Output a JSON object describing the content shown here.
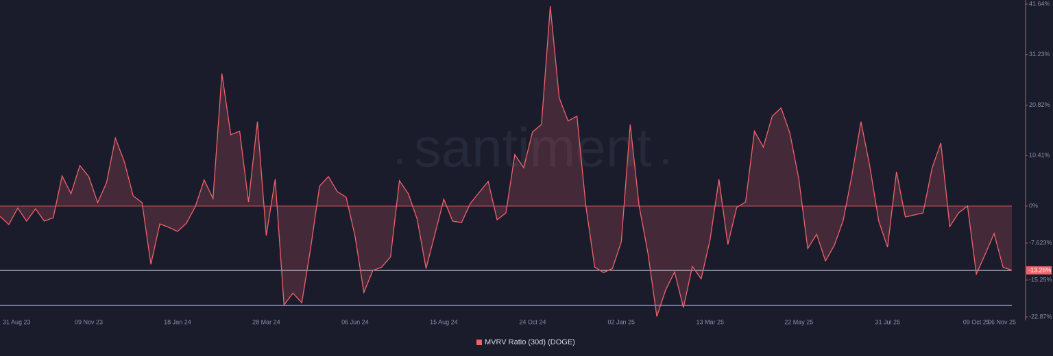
{
  "chart_data": {
    "type": "line",
    "watermark": "santiment",
    "series": [
      {
        "name": "MVRV Ratio (30d) (DOGE)",
        "color": "#f0626a",
        "x": [
          "2023-08-31",
          "2023-09-07",
          "2023-09-14",
          "2023-09-21",
          "2023-09-28",
          "2023-10-05",
          "2023-10-12",
          "2023-10-19",
          "2023-10-26",
          "2023-11-02",
          "2023-11-09",
          "2023-11-16",
          "2023-11-23",
          "2023-11-30",
          "2023-12-07",
          "2023-12-14",
          "2023-12-21",
          "2023-12-28",
          "2024-01-04",
          "2024-01-11",
          "2024-01-18",
          "2024-01-25",
          "2024-02-01",
          "2024-02-08",
          "2024-02-15",
          "2024-02-22",
          "2024-02-29",
          "2024-03-07",
          "2024-03-14",
          "2024-03-21",
          "2024-03-28",
          "2024-04-04",
          "2024-04-11",
          "2024-04-18",
          "2024-04-25",
          "2024-05-02",
          "2024-05-09",
          "2024-05-16",
          "2024-05-23",
          "2024-05-30",
          "2024-06-06",
          "2024-06-13",
          "2024-06-20",
          "2024-06-27",
          "2024-07-04",
          "2024-07-11",
          "2024-07-18",
          "2024-07-25",
          "2024-08-01",
          "2024-08-08",
          "2024-08-15",
          "2024-08-22",
          "2024-08-29",
          "2024-09-05",
          "2024-09-12",
          "2024-09-19",
          "2024-09-26",
          "2024-10-03",
          "2024-10-10",
          "2024-10-17",
          "2024-10-24",
          "2024-10-31",
          "2024-11-07",
          "2024-11-14",
          "2024-11-21",
          "2024-11-28",
          "2024-12-05",
          "2024-12-12",
          "2024-12-19",
          "2024-12-26",
          "2025-01-02",
          "2025-01-09",
          "2025-01-16",
          "2025-01-23",
          "2025-01-30",
          "2025-02-06",
          "2025-02-13",
          "2025-02-20",
          "2025-02-27",
          "2025-03-06",
          "2025-03-13",
          "2025-03-20",
          "2025-03-27",
          "2025-04-03",
          "2025-04-10",
          "2025-04-17",
          "2025-04-24",
          "2025-05-01",
          "2025-05-08",
          "2025-05-15",
          "2025-05-22",
          "2025-05-29",
          "2025-06-05",
          "2025-06-12",
          "2025-06-19",
          "2025-06-26",
          "2025-07-03",
          "2025-07-10",
          "2025-07-17",
          "2025-07-24",
          "2025-07-31",
          "2025-08-07",
          "2025-08-14",
          "2025-08-21",
          "2025-08-28",
          "2025-09-04",
          "2025-09-11",
          "2025-09-18",
          "2025-09-25",
          "2025-10-02",
          "2025-10-09",
          "2025-10-16",
          "2025-10-23",
          "2025-10-30",
          "2025-11-06"
        ],
        "values": [
          -2.12,
          -3.82,
          -0.42,
          -3.11,
          -0.57,
          -3.11,
          -2.4,
          6.22,
          2.55,
          8.35,
          6.08,
          0.71,
          4.81,
          14.0,
          9.19,
          2.12,
          0.71,
          -12.02,
          -3.68,
          -4.38,
          -5.23,
          -3.54,
          -0.14,
          5.37,
          1.56,
          27.3,
          14.71,
          15.42,
          0.85,
          17.4,
          -6.08,
          5.52,
          -20.37,
          -17.96,
          -19.94,
          -8.63,
          4.1,
          6.08,
          2.97,
          1.84,
          -6.22,
          -17.82,
          -13.3,
          -12.59,
          -10.47,
          5.23,
          2.55,
          -2.69,
          -12.87,
          -5.8,
          1.41,
          -3.11,
          -3.39,
          0.57,
          2.83,
          5.09,
          -2.83,
          -1.41,
          10.61,
          7.92,
          15.28,
          16.83,
          41.2,
          22.35,
          17.54,
          18.53,
          0.14,
          -12.59,
          -13.72,
          -12.87,
          -7.36,
          16.83,
          0.14,
          -9.76,
          -22.77,
          -17.26,
          -13.58,
          -20.93,
          -12.45,
          -14.99,
          -6.93,
          5.52,
          -7.92,
          -0.28,
          0.85,
          15.42,
          12.16,
          18.53,
          20.23,
          14.99,
          5.52,
          -8.77,
          -5.8,
          -11.32,
          -8.06,
          -2.97,
          6.51,
          17.4,
          8.2,
          -3.11,
          -8.49,
          7.07,
          -2.26,
          -1.84,
          -1.41,
          7.78,
          13.01,
          -4.24,
          -1.41,
          0,
          -14.0,
          -9.9,
          -5.66,
          -12.59,
          -13.26
        ],
        "last_value_label": "-13.26%"
      }
    ],
    "hlines": [
      -20.5
    ],
    "xlim": [
      "2023-08-31",
      "2025-11-06"
    ],
    "xticks": [
      {
        "value": "2023-08-31",
        "label": "31 Aug 23"
      },
      {
        "value": "2023-11-09",
        "label": "09 Nov 23"
      },
      {
        "value": "2024-01-18",
        "label": "18 Jan 24"
      },
      {
        "value": "2024-03-28",
        "label": "28 Mar 24"
      },
      {
        "value": "2024-06-06",
        "label": "06 Jun 24"
      },
      {
        "value": "2024-08-15",
        "label": "15 Aug 24"
      },
      {
        "value": "2024-10-24",
        "label": "24 Oct 24"
      },
      {
        "value": "2025-01-02",
        "label": "02 Jan 25"
      },
      {
        "value": "2025-03-13",
        "label": "13 Mar 25"
      },
      {
        "value": "2025-05-22",
        "label": "22 May 25"
      },
      {
        "value": "2025-07-31",
        "label": "31 Jul 25"
      },
      {
        "value": "2025-10-09",
        "label": "09 Oct 25"
      },
      {
        "value": "2025-11-06",
        "label": "06 Nov 25"
      }
    ],
    "ylim": [
      -22.87,
      41.64
    ],
    "yticks": [
      {
        "value": 41.64,
        "label": "41.64%"
      },
      {
        "value": 31.23,
        "label": "31.23%"
      },
      {
        "value": 20.82,
        "label": "20.82%"
      },
      {
        "value": 10.41,
        "label": "10.41%"
      },
      {
        "value": 0,
        "label": "0%"
      },
      {
        "value": -7.623,
        "label": "-7.623%"
      },
      {
        "value": -15.25,
        "label": "-15.25%"
      },
      {
        "value": -22.87,
        "label": "-22.87%"
      }
    ],
    "axis_side": "right"
  }
}
